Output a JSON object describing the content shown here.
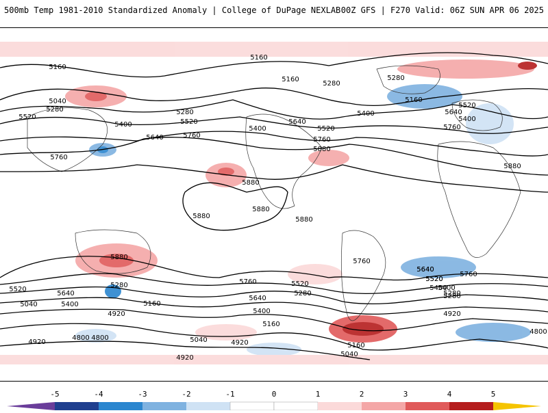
{
  "header": {
    "title_left": "500mb Temp 1981-2010 Standardized Anomaly | College of DuPage NEXLAB",
    "title_right": "00Z GFS | F270 Valid: 06Z SUN APR 06 2025"
  },
  "colors": {
    "neg5": "#6a3d9a",
    "neg4": "#1f3f8f",
    "neg3": "#2b86cf",
    "neg2": "#7fb2e0",
    "neg1": "#cfe2f4",
    "neutral": "#ffffff",
    "pos1": "#fbd9d9",
    "pos2": "#f4a7a7",
    "pos3": "#e05a5a",
    "pos4": "#b51d1d",
    "pos5": "#7a0a0a",
    "pos6": "#f5c400"
  },
  "contour_labels": [
    "5160",
    "5160",
    "5040",
    "5280",
    "5520",
    "5400",
    "5640",
    "5760",
    "5760",
    "5280",
    "5520",
    "5400",
    "5640",
    "5520",
    "5760",
    "5880",
    "5400",
    "5160",
    "5280",
    "5280",
    "5160",
    "5520",
    "5640",
    "5400",
    "5760",
    "5880",
    "5880",
    "5880",
    "5880",
    "5880",
    "5880",
    "5760",
    "5640",
    "5400",
    "5520",
    "5280",
    "4800",
    "5520",
    "5040",
    "5640",
    "5280",
    "5400",
    "5160",
    "4920",
    "4920",
    "4800",
    "5040",
    "4920",
    "5760",
    "5520",
    "5640",
    "5400",
    "5280",
    "5160",
    "5040",
    "4920",
    "4920",
    "5160",
    "5280",
    "5400",
    "5520",
    "5640",
    "5760",
    "4800"
  ],
  "colorbar": {
    "ticks": [
      "-5",
      "-4",
      "-3",
      "-2",
      "-1",
      "0",
      "1",
      "2",
      "3",
      "4",
      "5"
    ]
  }
}
